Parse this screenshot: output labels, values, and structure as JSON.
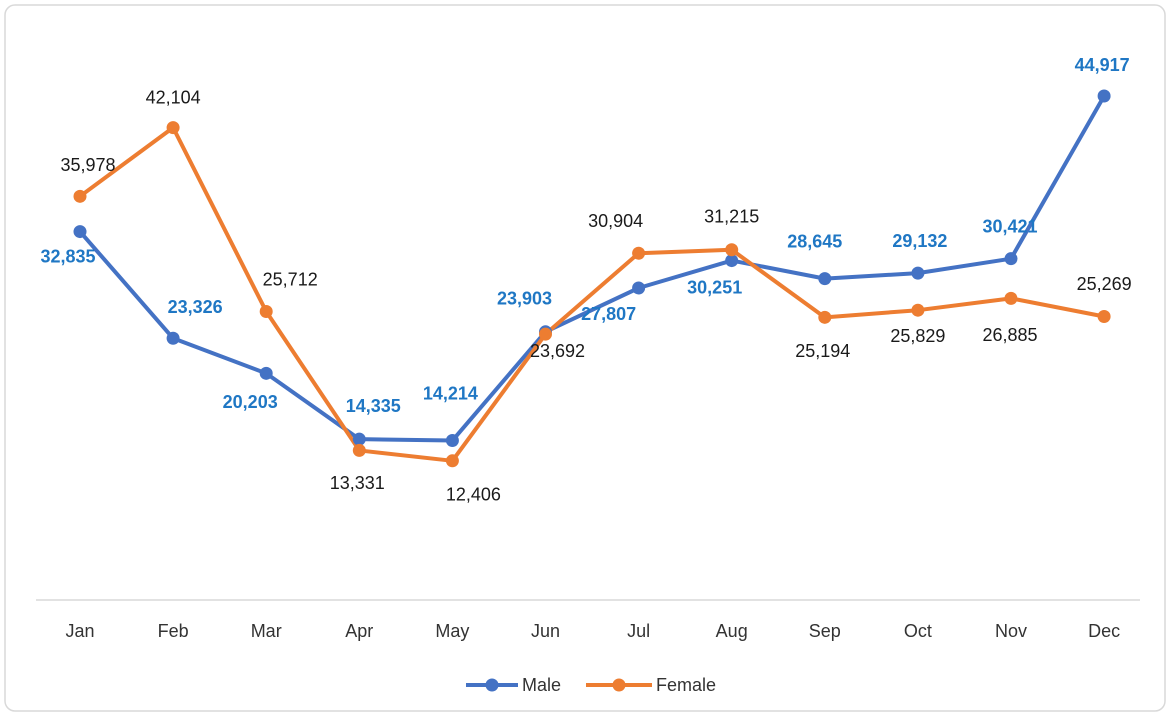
{
  "chart_data": {
    "type": "line",
    "categories": [
      "Jan",
      "Feb",
      "Mar",
      "Apr",
      "May",
      "Jun",
      "Jul",
      "Aug",
      "Sep",
      "Oct",
      "Nov",
      "Dec"
    ],
    "series": [
      {
        "name": "Male",
        "color": "#4472c4",
        "values": [
          32835,
          23326,
          20203,
          14335,
          14214,
          23903,
          27807,
          30251,
          28645,
          29132,
          30421,
          44917
        ],
        "value_labels": [
          "32,835",
          "23,326",
          "20,203",
          "14,335",
          "14,214",
          "23,903",
          "27,807",
          "30,251",
          "28,645",
          "29,132",
          "30,421",
          "44,917"
        ]
      },
      {
        "name": "Female",
        "color": "#ed7d31",
        "values": [
          35978,
          42104,
          25712,
          13331,
          12406,
          23692,
          30904,
          31215,
          25194,
          25829,
          26885,
          25269
        ],
        "value_labels": [
          "35,978",
          "42,104",
          "25,712",
          "13,331",
          "12,406",
          "23,692",
          "30,904",
          "31,215",
          "25,194",
          "25,829",
          "26,885",
          "25,269"
        ]
      }
    ],
    "ylim": [
      0,
      50000
    ],
    "legend": "bottom"
  }
}
